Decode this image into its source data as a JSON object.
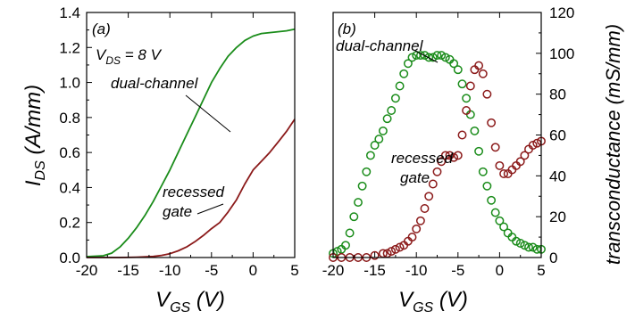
{
  "chart_data": [
    {
      "type": "line",
      "panel_label": "(a)",
      "condition": {
        "text": "V",
        "sub": "DS",
        "tail": " = 8 V"
      },
      "xlabel": {
        "main": "V",
        "sub": "GS",
        "unit": " (V)"
      },
      "ylabel": {
        "main": "I",
        "sub": "DS",
        "unit": " (A/mm)"
      },
      "xlim": [
        -20,
        5
      ],
      "ylim": [
        0,
        1.4
      ],
      "xticks": [
        "-20",
        "-15",
        "-10",
        "-5",
        "0",
        "5"
      ],
      "yticks": [
        "0.0",
        "0.2",
        "0.4",
        "0.6",
        "0.8",
        "1.0",
        "1.2",
        "1.4"
      ],
      "series": [
        {
          "name": "dual-channel",
          "color": "#1a8c1a",
          "x": [
            -20,
            -18,
            -17,
            -16,
            -15,
            -14,
            -13,
            -12,
            -11,
            -10,
            -9,
            -8,
            -7,
            -6,
            -5,
            -4,
            -3,
            -2,
            -1,
            0,
            1,
            2,
            3,
            4,
            5
          ],
          "y": [
            0.005,
            0.01,
            0.025,
            0.06,
            0.11,
            0.17,
            0.24,
            0.32,
            0.41,
            0.5,
            0.6,
            0.7,
            0.8,
            0.9,
            1.0,
            1.08,
            1.15,
            1.2,
            1.24,
            1.265,
            1.28,
            1.285,
            1.29,
            1.295,
            1.305
          ]
        },
        {
          "name": "recessed gate",
          "color": "#8b1a1a",
          "x": [
            -20,
            -16,
            -14,
            -12,
            -11,
            -10,
            -9,
            -8,
            -7,
            -6,
            -5,
            -4,
            -3,
            -2,
            -1,
            0,
            1,
            2,
            3,
            4,
            5
          ],
          "y": [
            0,
            0,
            0.002,
            0.006,
            0.012,
            0.022,
            0.038,
            0.06,
            0.09,
            0.125,
            0.165,
            0.2,
            0.26,
            0.33,
            0.42,
            0.5,
            0.55,
            0.6,
            0.66,
            0.72,
            0.79
          ]
        }
      ],
      "annotations": [
        "dual-channel",
        "recessed",
        "gate"
      ]
    },
    {
      "type": "scatter",
      "panel_label": "(b)",
      "xlabel": {
        "main": "V",
        "sub": "GS",
        "unit": " (V)"
      },
      "ylabel": "transconductance (mS/mm)",
      "xlim": [
        -20,
        5
      ],
      "ylim": [
        0,
        120
      ],
      "xticks": [
        "-20",
        "-15",
        "-10",
        "-5",
        "0",
        "5"
      ],
      "yticks": [
        "0",
        "20",
        "40",
        "60",
        "80",
        "100",
        "120"
      ],
      "series": [
        {
          "name": "dual-channel",
          "color": "#1a8c1a",
          "x": [
            -20,
            -19.5,
            -19,
            -18.5,
            -18,
            -17.5,
            -17,
            -16.5,
            -16,
            -15.5,
            -15,
            -14.5,
            -14,
            -13.5,
            -13,
            -12.5,
            -12,
            -11.5,
            -11,
            -10.5,
            -10,
            -9.5,
            -9,
            -8.5,
            -8,
            -7.5,
            -7,
            -6.5,
            -6,
            -5.5,
            -5,
            -4.5,
            -4,
            -3.5,
            -3,
            -2.5,
            -2,
            -1.5,
            -1,
            -0.5,
            0,
            0.5,
            1,
            1.5,
            2,
            2.5,
            3,
            3.5,
            4,
            4.5,
            5
          ],
          "y": [
            2,
            3,
            4,
            6,
            12,
            20,
            27,
            35,
            42,
            50,
            55,
            58,
            62,
            68,
            72,
            78,
            84,
            90,
            95,
            98,
            99,
            99,
            99,
            98,
            98,
            99,
            99,
            98,
            97,
            95,
            92,
            85,
            78,
            70,
            62,
            52,
            42,
            35,
            28,
            22,
            18,
            15,
            12,
            10,
            8,
            7,
            6,
            5,
            5,
            4,
            4
          ]
        },
        {
          "name": "recessed gate",
          "color": "#8b1a1a",
          "x": [
            -20,
            -19,
            -18,
            -17,
            -16,
            -15,
            -14,
            -13.5,
            -13,
            -12.5,
            -12,
            -11.5,
            -11,
            -10.5,
            -10,
            -9.5,
            -9,
            -8.5,
            -8,
            -7.5,
            -7,
            -6.5,
            -6,
            -5.5,
            -5,
            -4.5,
            -4,
            -3.5,
            -3,
            -2.5,
            -2,
            -1.5,
            -1,
            -0.5,
            0,
            0.5,
            1,
            1.5,
            2,
            2.5,
            3,
            3.5,
            4,
            4.5,
            5
          ],
          "y": [
            0,
            0,
            0,
            0,
            0,
            1,
            2,
            2,
            3,
            4,
            5,
            6,
            8,
            10,
            14,
            18,
            24,
            30,
            36,
            42,
            47,
            50,
            50,
            49,
            50,
            60,
            72,
            84,
            92,
            94,
            90,
            80,
            66,
            54,
            45,
            41,
            41,
            43,
            45,
            47,
            50,
            53,
            55,
            56,
            57
          ]
        }
      ],
      "annotations": [
        "dual-channel",
        "recessed",
        "gate"
      ]
    }
  ]
}
